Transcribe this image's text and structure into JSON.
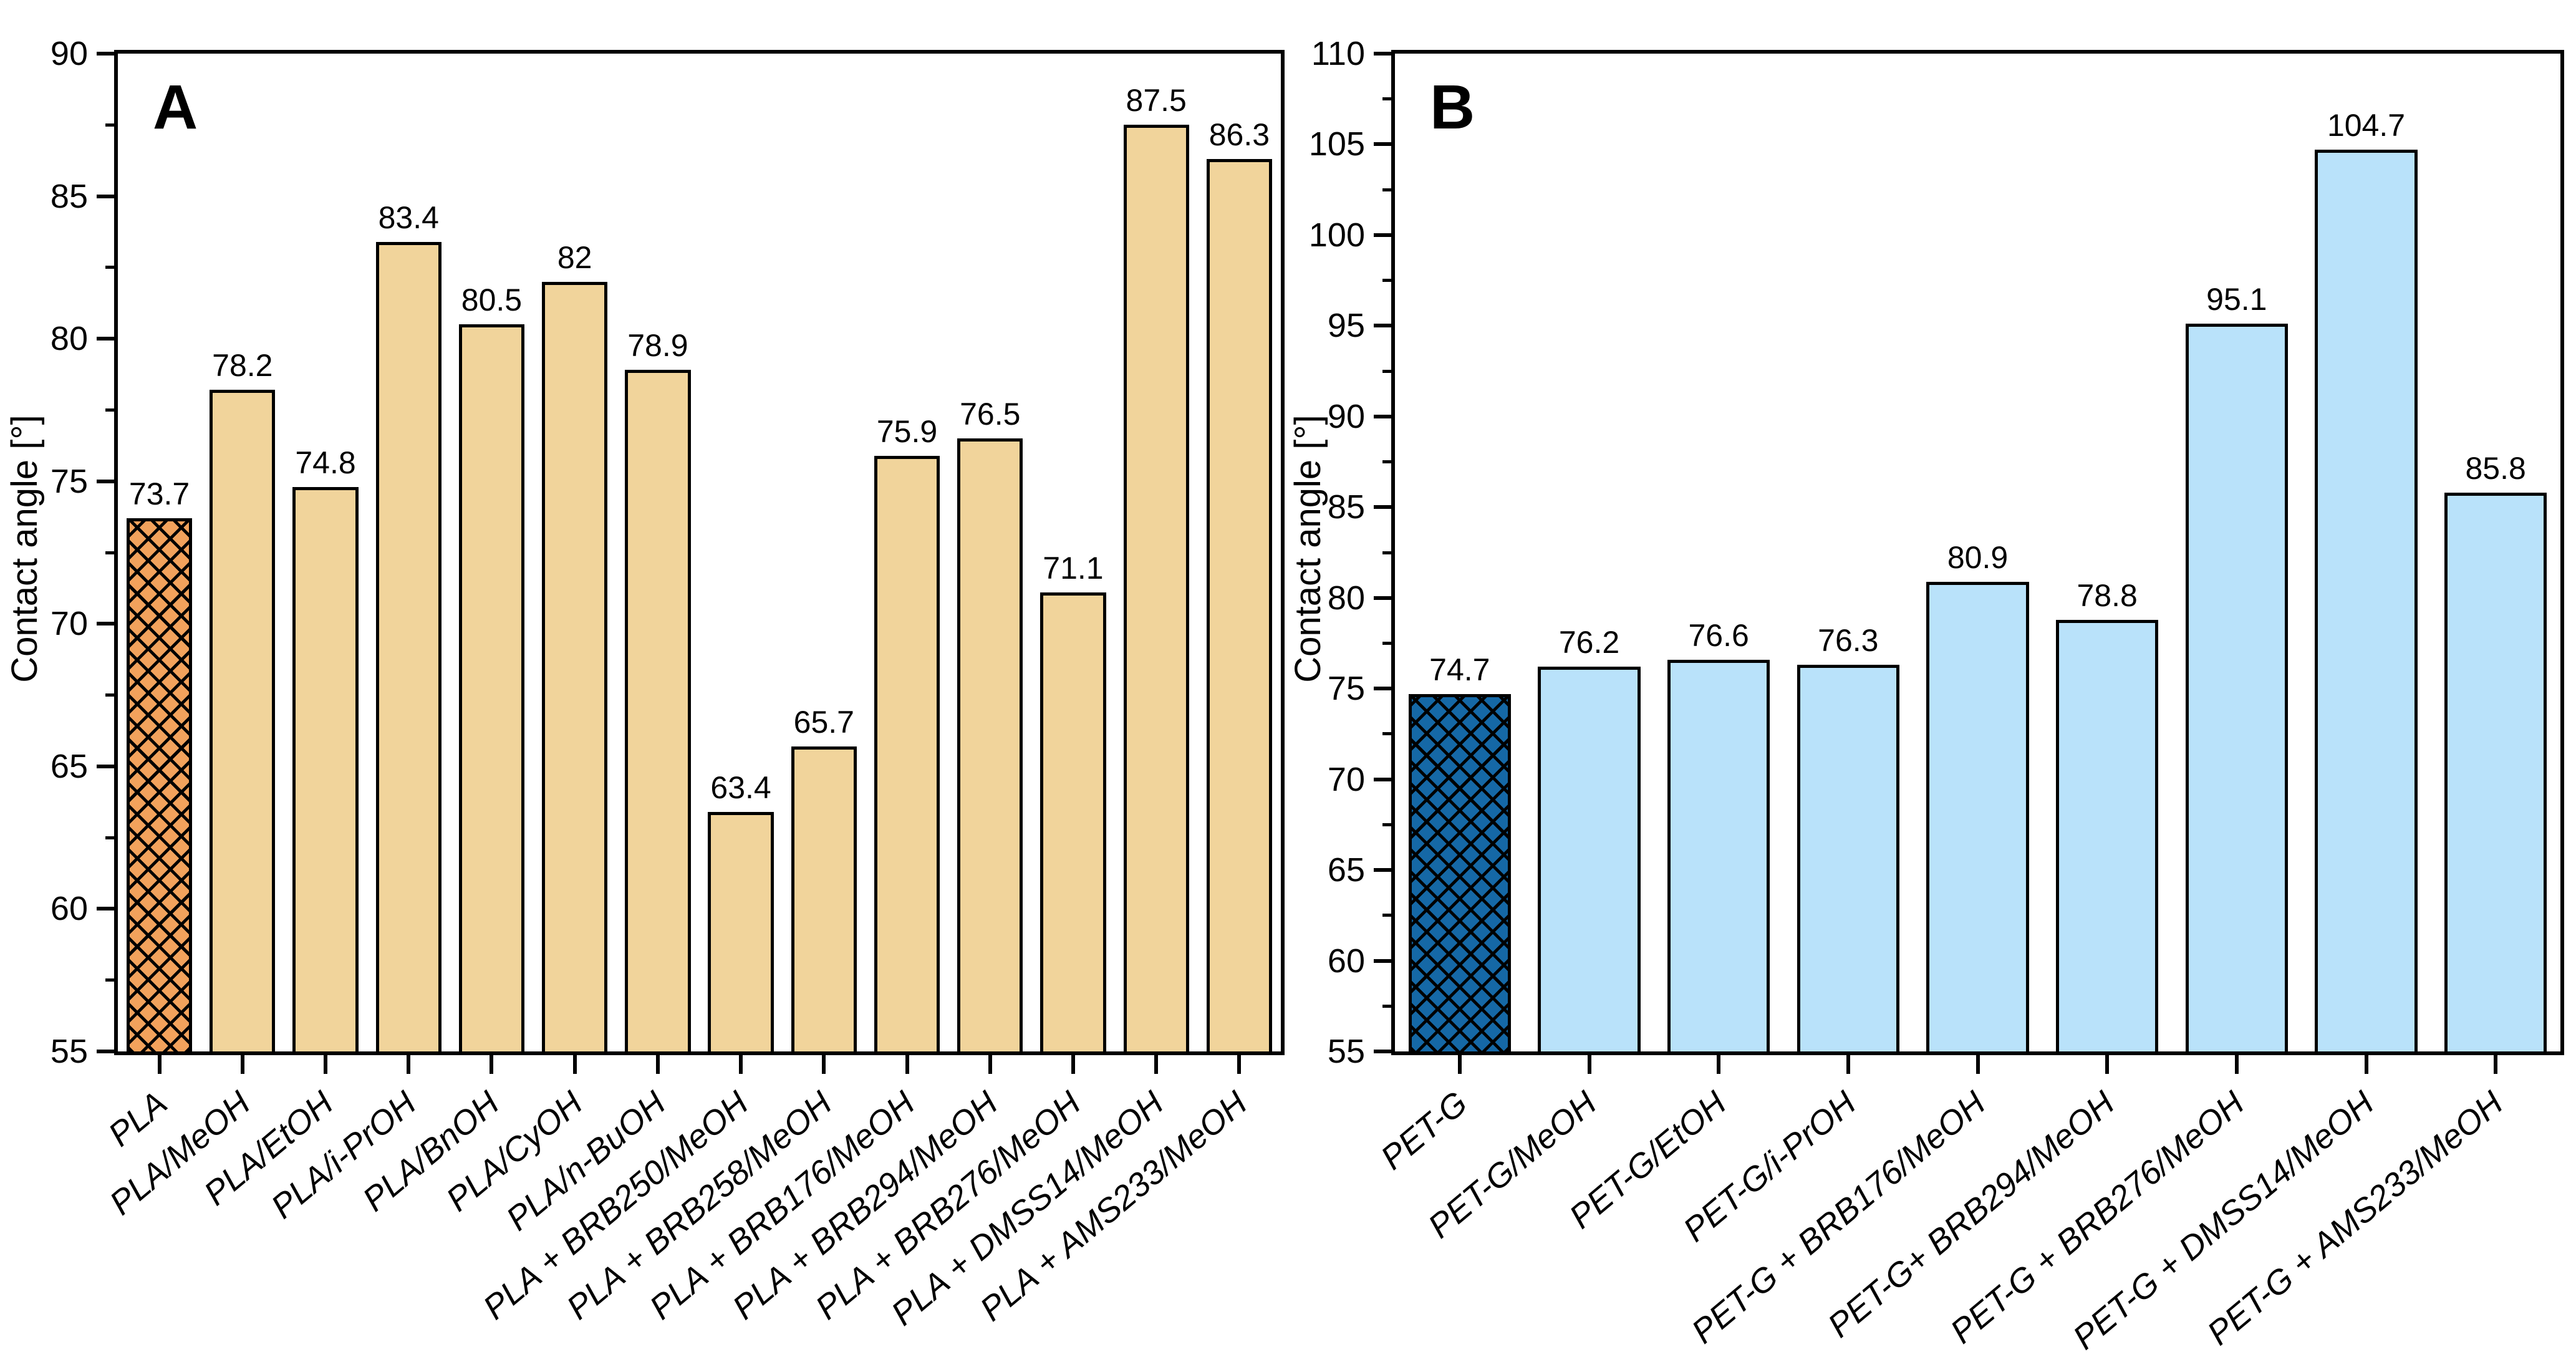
{
  "chart_data": [
    {
      "type": "bar",
      "panel_label": "A",
      "title": "",
      "xlabel": "",
      "ylabel": "Contact angle [°]",
      "ylim": [
        55,
        90
      ],
      "yticks": [
        55,
        60,
        65,
        70,
        75,
        80,
        85,
        90
      ],
      "minor_tick_step": 2.5,
      "grid": false,
      "legend": false,
      "bar_color": "#F1D49B",
      "bar_edge_color": "#000000",
      "highlight": {
        "index": 0,
        "color": "#F2A25C",
        "pattern": "crosshatch"
      },
      "categories": [
        "PLA",
        "PLA/MeOH",
        "PLA/EtOH",
        "PLA/i-PrOH",
        "PLA/BnOH",
        "PLA/CyOH",
        "PLA/n-BuOH",
        "PLA + BRB250/MeOH",
        "PLA + BRB258/MeOH",
        "PLA + BRB176/MeOH",
        "PLA + BRB294/MeOH",
        "PLA + BRB276/MeOH",
        "PLA + DMSS14/MeOH",
        "PLA + AMS233/MeOH"
      ],
      "values": [
        73.7,
        78.2,
        74.8,
        83.4,
        80.5,
        82,
        78.9,
        63.4,
        65.7,
        75.9,
        76.5,
        71.1,
        87.5,
        86.3
      ],
      "value_labels": [
        "73.7",
        "78.2",
        "74.8",
        "83.4",
        "80.5",
        "82",
        "78.9",
        "63.4",
        "65.7",
        "75.9",
        "76.5",
        "71.1",
        "87.5",
        "86.3"
      ]
    },
    {
      "type": "bar",
      "panel_label": "B",
      "title": "",
      "xlabel": "",
      "ylabel": "Contact angle [°]",
      "ylim": [
        55,
        110
      ],
      "yticks": [
        55,
        60,
        65,
        70,
        75,
        80,
        85,
        90,
        95,
        100,
        105,
        110
      ],
      "minor_tick_step": 2.5,
      "grid": false,
      "legend": false,
      "bar_color": "#B9E2FA",
      "bar_edge_color": "#000000",
      "highlight": {
        "index": 0,
        "color": "#1568A6",
        "pattern": "crosshatch"
      },
      "categories": [
        "PET-G",
        "PET-G/MeOH",
        "PET-G/EtOH",
        "PET-G/i-PrOH",
        "PET-G + BRB176/MeOH",
        "PET-G+ BRB294/MeOH",
        "PET-G + BRB276/MeOH",
        "PET-G + DMSS14/MeOH",
        "PET-G + AMS233/MeOH"
      ],
      "values": [
        74.7,
        76.2,
        76.6,
        76.3,
        80.9,
        78.8,
        95.1,
        104.7,
        85.8
      ],
      "value_labels": [
        "74.7",
        "76.2",
        "76.6",
        "76.3",
        "80.9",
        "78.8",
        "95.1",
        "104.7",
        "85.8"
      ]
    }
  ]
}
